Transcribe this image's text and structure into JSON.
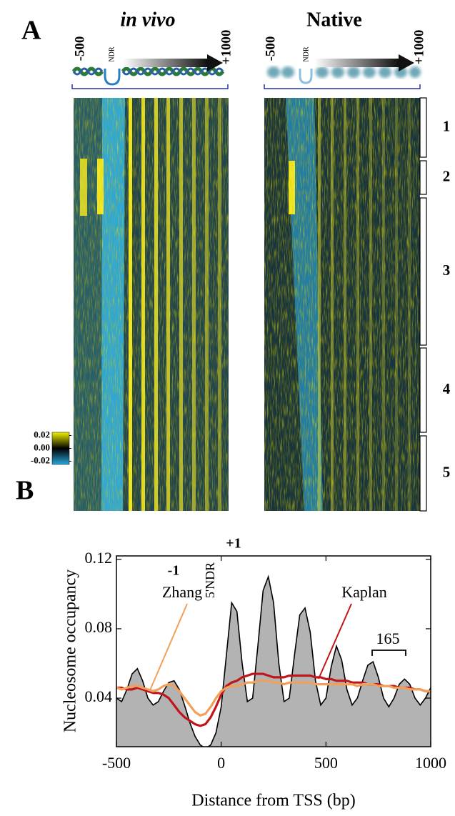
{
  "panel_a": {
    "panel_label": "A",
    "heatmaps": [
      {
        "title": "in vivo",
        "start_label": "-500",
        "ndr_label": "NDR",
        "end_label": "+1000"
      },
      {
        "title": "Native",
        "start_label": "-500",
        "ndr_label": "NDR",
        "end_label": "+1000"
      }
    ],
    "colorbar_ticks": [
      0.02,
      {
        "value": 0,
        "label": "0.00"
      },
      -0.02
    ],
    "clusters": [
      "1",
      "2",
      "3",
      "4",
      "5"
    ]
  },
  "chart_data": {
    "type": "area",
    "panel_label": "B",
    "xlabel": "Distance from TSS (bp)",
    "ylabel": "Nucleosome occupancy",
    "x": [
      -500,
      -475,
      -450,
      -425,
      -400,
      -375,
      -350,
      -325,
      -300,
      -275,
      -250,
      -225,
      -200,
      -175,
      -150,
      -125,
      -100,
      -75,
      -50,
      -25,
      0,
      25,
      50,
      75,
      100,
      125,
      150,
      175,
      200,
      225,
      250,
      275,
      300,
      325,
      350,
      375,
      400,
      425,
      450,
      475,
      500,
      525,
      550,
      575,
      600,
      625,
      650,
      675,
      700,
      725,
      750,
      775,
      800,
      825,
      850,
      875,
      900,
      925,
      950,
      975,
      1000
    ],
    "series": [
      {
        "color": "#b3b3b3",
        "values": [
          0.04,
          0.038,
          0.045,
          0.054,
          0.057,
          0.05,
          0.04,
          0.036,
          0.038,
          0.044,
          0.049,
          0.05,
          0.045,
          0.036,
          0.026,
          0.018,
          0.013,
          0.011,
          0.013,
          0.02,
          0.035,
          0.065,
          0.095,
          0.09,
          0.06,
          0.038,
          0.04,
          0.07,
          0.102,
          0.11,
          0.095,
          0.06,
          0.038,
          0.04,
          0.065,
          0.088,
          0.092,
          0.078,
          0.05,
          0.036,
          0.04,
          0.058,
          0.07,
          0.062,
          0.045,
          0.036,
          0.04,
          0.05,
          0.059,
          0.061,
          0.052,
          0.04,
          0.035,
          0.04,
          0.048,
          0.051,
          0.048,
          0.04,
          0.036,
          0.04,
          0.046
        ]
      },
      {
        "name": "Kaplan",
        "color": "#c0161b",
        "values": [
          0.046,
          0.046,
          0.045,
          0.045,
          0.046,
          0.045,
          0.044,
          0.043,
          0.043,
          0.042,
          0.04,
          0.036,
          0.032,
          0.029,
          0.027,
          0.025,
          0.024,
          0.025,
          0.029,
          0.035,
          0.042,
          0.047,
          0.049,
          0.05,
          0.052,
          0.053,
          0.054,
          0.054,
          0.054,
          0.053,
          0.052,
          0.052,
          0.052,
          0.053,
          0.053,
          0.053,
          0.053,
          0.053,
          0.052,
          0.052,
          0.051,
          0.051,
          0.05,
          0.05,
          0.05,
          0.049,
          0.049,
          0.049,
          0.048,
          0.048,
          0.048,
          0.047,
          0.047,
          0.047,
          0.046,
          0.046,
          0.046,
          0.045,
          0.045,
          0.044,
          0.044
        ]
      },
      {
        "name": "Zhang",
        "color": "#f0a05a",
        "values": [
          0.046,
          0.045,
          0.046,
          0.047,
          0.047,
          0.046,
          0.045,
          0.044,
          0.045,
          0.047,
          0.048,
          0.047,
          0.044,
          0.04,
          0.036,
          0.032,
          0.03,
          0.031,
          0.035,
          0.04,
          0.044,
          0.046,
          0.047,
          0.047,
          0.048,
          0.049,
          0.049,
          0.05,
          0.05,
          0.05,
          0.049,
          0.049,
          0.048,
          0.049,
          0.049,
          0.049,
          0.049,
          0.049,
          0.048,
          0.048,
          0.048,
          0.048,
          0.048,
          0.048,
          0.048,
          0.048,
          0.047,
          0.048,
          0.048,
          0.048,
          0.047,
          0.047,
          0.047,
          0.046,
          0.046,
          0.046,
          0.045,
          0.045,
          0.045,
          0.044,
          0.044
        ]
      }
    ],
    "annotations": [
      "+1",
      "-1",
      "5'NDR",
      "165"
    ],
    "xlim": [
      -500,
      1000
    ],
    "xticks": [
      -500,
      0,
      500,
      1000
    ],
    "ylim": [
      0.012,
      0.122
    ],
    "yticks": [
      0.04,
      0.08,
      0.12
    ]
  }
}
